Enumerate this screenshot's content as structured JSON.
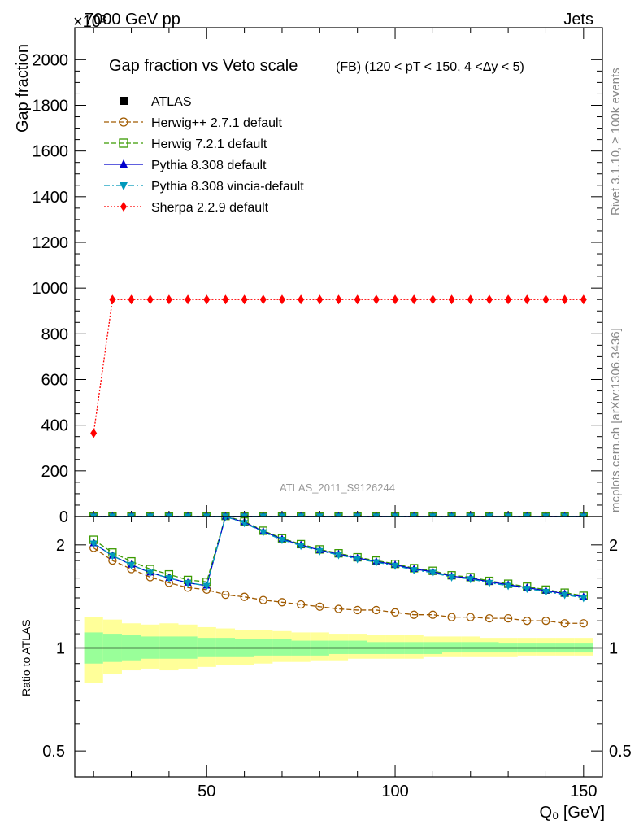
{
  "header": {
    "left": "7000 GeV pp",
    "right": "Jets",
    "exponent": "×10³"
  },
  "side_text": {
    "top": "Rivet 3.1.10, ≥ 100k events",
    "bottom": "mcplots.cern.ch [arXiv:1306.3436]"
  },
  "chart_data": [
    {
      "type": "line",
      "title": "Gap fraction vs Veto scale",
      "subtitle": "(FB) (120 < pT < 150, 4 <Δy < 5)",
      "ylabel": "Gap fraction",
      "y_multiplier": "×10³",
      "watermark": "ATLAS_2011_S9126244",
      "xlim": [
        15,
        155
      ],
      "ylim": [
        0,
        2140
      ],
      "yticks": [
        0,
        200,
        400,
        600,
        800,
        1000,
        1200,
        1400,
        1600,
        1800,
        2000
      ],
      "ytick_labels": [
        "0",
        "200",
        "400",
        "600",
        "800",
        "1000",
        "1200",
        "1400",
        "1600",
        "1800",
        "2000"
      ],
      "grid": false,
      "legend_position": "top-left",
      "x": [
        20,
        25,
        30,
        35,
        40,
        45,
        50,
        55,
        60,
        65,
        70,
        75,
        80,
        85,
        90,
        95,
        100,
        105,
        110,
        115,
        120,
        125,
        130,
        135,
        140,
        145,
        150
      ],
      "series": [
        {
          "name": "ATLAS",
          "color": "#000000",
          "marker": "square-filled",
          "line": "none",
          "values": [
            0.46,
            0.5,
            0.53,
            0.56,
            0.58,
            0.6,
            0.61,
            0.63,
            0.64,
            0.65,
            0.66,
            0.67,
            0.68,
            0.69,
            0.7,
            0.7,
            0.71,
            0.72,
            0.72,
            0.73,
            0.73,
            0.74,
            0.74,
            0.75,
            0.75,
            0.76,
            0.76
          ]
        },
        {
          "name": "Herwig++ 2.7.1 default",
          "color": "#a05a00",
          "marker": "circle-open",
          "line": "dashed",
          "values": [
            0.9,
            0.9,
            0.9,
            0.9,
            0.9,
            0.9,
            0.9,
            0.9,
            0.9,
            0.9,
            0.9,
            0.9,
            0.9,
            0.9,
            0.9,
            0.9,
            0.9,
            0.9,
            0.9,
            0.9,
            0.9,
            0.9,
            0.9,
            0.9,
            0.9,
            0.9,
            0.9
          ]
        },
        {
          "name": "Herwig 7.2.1 default",
          "color": "#3a9a00",
          "marker": "square-open",
          "line": "dashed",
          "values": [
            0.95,
            0.95,
            0.95,
            0.95,
            0.95,
            0.95,
            0.95,
            0.95,
            0.95,
            0.95,
            0.95,
            0.95,
            0.95,
            0.95,
            0.95,
            0.95,
            0.95,
            0.95,
            0.95,
            0.95,
            0.95,
            0.95,
            0.95,
            0.95,
            0.95,
            0.95,
            0.95
          ]
        },
        {
          "name": "Pythia 8.308 default",
          "color": "#0000cc",
          "marker": "triangle-up-filled",
          "line": "solid",
          "values": [
            0.93,
            0.93,
            0.93,
            0.93,
            0.93,
            0.93,
            0.93,
            0.93,
            0.93,
            0.93,
            0.93,
            0.93,
            0.93,
            0.93,
            0.93,
            0.93,
            0.93,
            0.93,
            0.93,
            0.93,
            0.93,
            0.93,
            0.93,
            0.93,
            0.93,
            0.93,
            0.93
          ]
        },
        {
          "name": "Pythia 8.308 vincia-default",
          "color": "#0099bb",
          "marker": "triangle-down-filled",
          "line": "dashdot",
          "values": [
            0.93,
            0.93,
            0.93,
            0.93,
            0.93,
            0.93,
            0.93,
            0.93,
            0.93,
            0.93,
            0.93,
            0.93,
            0.93,
            0.93,
            0.93,
            0.93,
            0.93,
            0.93,
            0.93,
            0.93,
            0.93,
            0.93,
            0.93,
            0.93,
            0.93,
            0.93,
            0.93
          ]
        },
        {
          "name": "Sherpa 2.2.9 default",
          "color": "#ff0000",
          "marker": "diamond-filled",
          "line": "dotted",
          "values": [
            365,
            950,
            950,
            950,
            950,
            950,
            950,
            950,
            950,
            950,
            950,
            950,
            950,
            950,
            950,
            950,
            950,
            950,
            950,
            950,
            950,
            950,
            950,
            950,
            950,
            950,
            950
          ]
        }
      ]
    },
    {
      "type": "line",
      "ylabel": "Ratio to ATLAS",
      "xlabel": "Q₀ [GeV]",
      "xlim": [
        15,
        155
      ],
      "ylim": [
        0.42,
        2.42
      ],
      "log_y": true,
      "yticks": [
        0.5,
        1,
        2
      ],
      "ytick_labels": [
        "0.5",
        "1",
        "2"
      ],
      "xticks": [
        50,
        100,
        150
      ],
      "xtick_labels": [
        "50",
        "100",
        "150"
      ],
      "bands": {
        "yellow": {
          "color": "#ffff99",
          "lower": [
            0.79,
            0.84,
            0.86,
            0.87,
            0.86,
            0.87,
            0.88,
            0.89,
            0.89,
            0.9,
            0.91,
            0.91,
            0.92,
            0.92,
            0.93,
            0.93,
            0.93,
            0.93,
            0.94,
            0.94,
            0.94,
            0.94,
            0.94,
            0.95,
            0.95,
            0.95,
            0.95
          ],
          "upper": [
            1.23,
            1.21,
            1.18,
            1.17,
            1.18,
            1.17,
            1.15,
            1.14,
            1.13,
            1.13,
            1.12,
            1.11,
            1.11,
            1.1,
            1.1,
            1.09,
            1.09,
            1.09,
            1.08,
            1.08,
            1.08,
            1.07,
            1.07,
            1.07,
            1.07,
            1.07,
            1.07
          ]
        },
        "green": {
          "color": "#99ff99",
          "lower": [
            0.9,
            0.91,
            0.92,
            0.93,
            0.93,
            0.93,
            0.94,
            0.94,
            0.94,
            0.95,
            0.95,
            0.95,
            0.95,
            0.96,
            0.96,
            0.96,
            0.96,
            0.96,
            0.96,
            0.97,
            0.97,
            0.97,
            0.97,
            0.97,
            0.97,
            0.97,
            0.97
          ],
          "upper": [
            1.11,
            1.1,
            1.09,
            1.08,
            1.08,
            1.08,
            1.07,
            1.07,
            1.06,
            1.06,
            1.06,
            1.05,
            1.05,
            1.05,
            1.05,
            1.04,
            1.04,
            1.04,
            1.04,
            1.04,
            1.04,
            1.04,
            1.03,
            1.03,
            1.03,
            1.03,
            1.03
          ]
        }
      },
      "x": [
        20,
        25,
        30,
        35,
        40,
        45,
        50,
        55,
        60,
        65,
        70,
        75,
        80,
        85,
        90,
        95,
        100,
        105,
        110,
        115,
        120,
        125,
        130,
        135,
        140,
        145,
        150
      ],
      "series": [
        {
          "name": "Herwig++ 2.7.1 default",
          "color": "#a05a00",
          "marker": "circle-open",
          "line": "dashed",
          "values": [
            1.96,
            1.8,
            1.7,
            1.61,
            1.55,
            1.5,
            1.48,
            1.43,
            1.41,
            1.38,
            1.36,
            1.34,
            1.32,
            1.3,
            1.29,
            1.29,
            1.27,
            1.25,
            1.25,
            1.23,
            1.23,
            1.22,
            1.22,
            1.2,
            1.2,
            1.18,
            1.18
          ]
        },
        {
          "name": "Herwig 7.2.1 default",
          "color": "#3a9a00",
          "marker": "square-open",
          "line": "dashed",
          "values": [
            2.07,
            1.9,
            1.79,
            1.7,
            1.64,
            1.58,
            1.56,
            2.43,
            2.34,
            2.2,
            2.09,
            2.01,
            1.94,
            1.89,
            1.84,
            1.8,
            1.76,
            1.71,
            1.68,
            1.63,
            1.61,
            1.57,
            1.54,
            1.51,
            1.48,
            1.45,
            1.42
          ]
        },
        {
          "name": "Pythia 8.308 default",
          "color": "#0000cc",
          "marker": "triangle-up-filled",
          "line": "solid",
          "values": [
            2.02,
            1.86,
            1.75,
            1.66,
            1.6,
            1.55,
            1.52,
            2.42,
            2.33,
            2.19,
            2.08,
            2.0,
            1.93,
            1.88,
            1.83,
            1.79,
            1.75,
            1.7,
            1.67,
            1.62,
            1.6,
            1.56,
            1.53,
            1.5,
            1.47,
            1.44,
            1.41
          ]
        },
        {
          "name": "Pythia 8.308 vincia-default",
          "color": "#0099bb",
          "marker": "triangle-down-filled",
          "line": "dashdot",
          "values": [
            2.02,
            1.86,
            1.75,
            1.66,
            1.6,
            1.55,
            1.52,
            2.42,
            2.32,
            2.18,
            2.07,
            1.99,
            1.92,
            1.87,
            1.82,
            1.78,
            1.74,
            1.69,
            1.66,
            1.61,
            1.59,
            1.55,
            1.52,
            1.49,
            1.46,
            1.43,
            1.4
          ]
        }
      ]
    }
  ]
}
